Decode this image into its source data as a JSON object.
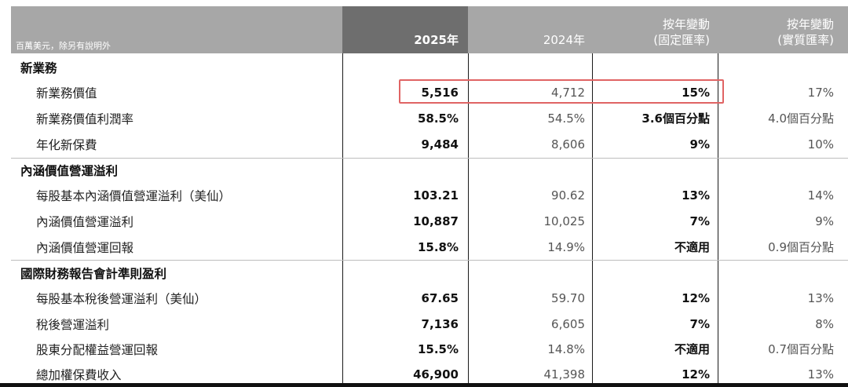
{
  "header": {
    "unit_note": "百萬美元，除另有說明外",
    "col_2025": "2025年",
    "col_2024": "2024年",
    "col_yoy_const_line1": "按年變動",
    "col_yoy_const_line2": "(固定匯率)",
    "col_yoy_actual_line1": "按年變動",
    "col_yoy_actual_line2": "(實質匯率)"
  },
  "sections": [
    {
      "title": "新業務",
      "rows": [
        {
          "label": "新業務價值",
          "v2025": "5,516",
          "v2024": "4,712",
          "yoy_const": "15%",
          "yoy_actual": "17%"
        },
        {
          "label": "新業務價值利潤率",
          "v2025": "58.5%",
          "v2024": "54.5%",
          "yoy_const": "3.6個百分點",
          "yoy_actual": "4.0個百分點"
        },
        {
          "label": "年化新保費",
          "v2025": "9,484",
          "v2024": "8,606",
          "yoy_const": "9%",
          "yoy_actual": "10%"
        }
      ]
    },
    {
      "title": "內涵價值營運溢利",
      "rows": [
        {
          "label": "每股基本內涵價值營運溢利（美仙）",
          "v2025": "103.21",
          "v2024": "90.62",
          "yoy_const": "13%",
          "yoy_actual": "14%"
        },
        {
          "label": "內涵價值營運溢利",
          "v2025": "10,887",
          "v2024": "10,025",
          "yoy_const": "7%",
          "yoy_actual": "9%"
        },
        {
          "label": "內涵價值營運回報",
          "v2025": "15.8%",
          "v2024": "14.9%",
          "yoy_const": "不適用",
          "yoy_actual": "0.9個百分點"
        }
      ]
    },
    {
      "title": "國際財務報告會計準則盈利",
      "rows": [
        {
          "label": "每股基本稅後營運溢利（美仙）",
          "v2025": "67.65",
          "v2024": "59.70",
          "yoy_const": "12%",
          "yoy_actual": "13%"
        },
        {
          "label": "稅後營運溢利",
          "v2025": "7,136",
          "v2024": "6,605",
          "yoy_const": "7%",
          "yoy_actual": "8%"
        },
        {
          "label": "股東分配權益營運回報",
          "v2025": "15.5%",
          "v2024": "14.8%",
          "yoy_const": "不適用",
          "yoy_actual": "0.7個百分點"
        },
        {
          "label": "總加權保費收入",
          "v2025": "46,900",
          "v2024": "41,398",
          "yoy_const": "12%",
          "yoy_actual": "13%"
        }
      ]
    }
  ],
  "colors": {
    "header_grey": "#a7a7a7",
    "header_dark": "#6e6e6e",
    "highlight_red": "#e06464"
  }
}
